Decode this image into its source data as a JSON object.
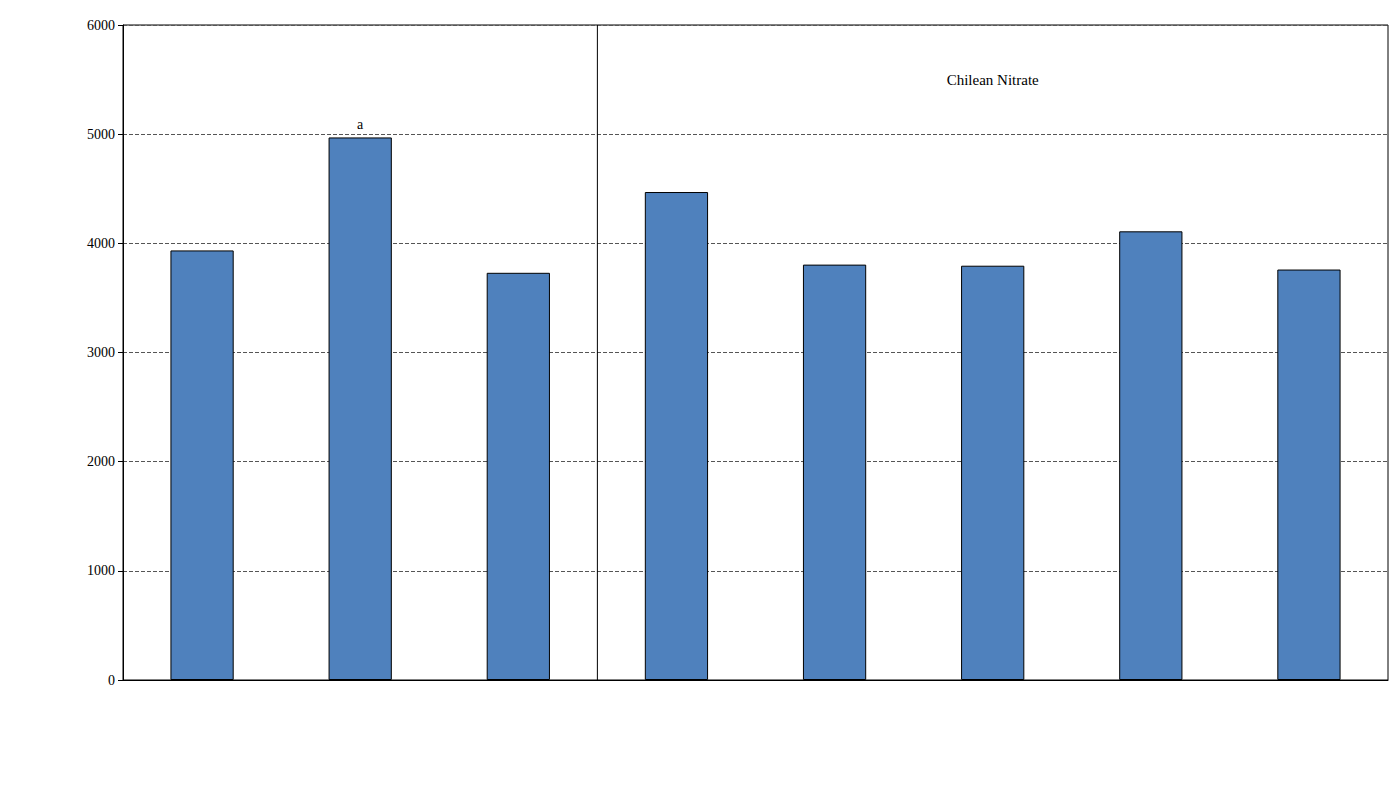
{
  "chart_data": {
    "type": "bar",
    "categories": [
      null,
      null,
      null,
      null,
      null,
      null,
      null,
      null
    ],
    "values": [
      3935,
      4970,
      3730,
      4470,
      3805,
      3795,
      4110,
      3760
    ],
    "color": "#4f81bd",
    "ylim": [
      0,
      6000
    ],
    "yticks": [
      0,
      1000,
      2000,
      3000,
      4000,
      5000,
      6000
    ],
    "grid": true,
    "tick_labels": "y",
    "annotations": [
      {
        "text": "a",
        "category": 1
      }
    ],
    "panels": [
      {
        "title": "Chilean Nitrate",
        "first": 3,
        "last": 7
      }
    ]
  }
}
